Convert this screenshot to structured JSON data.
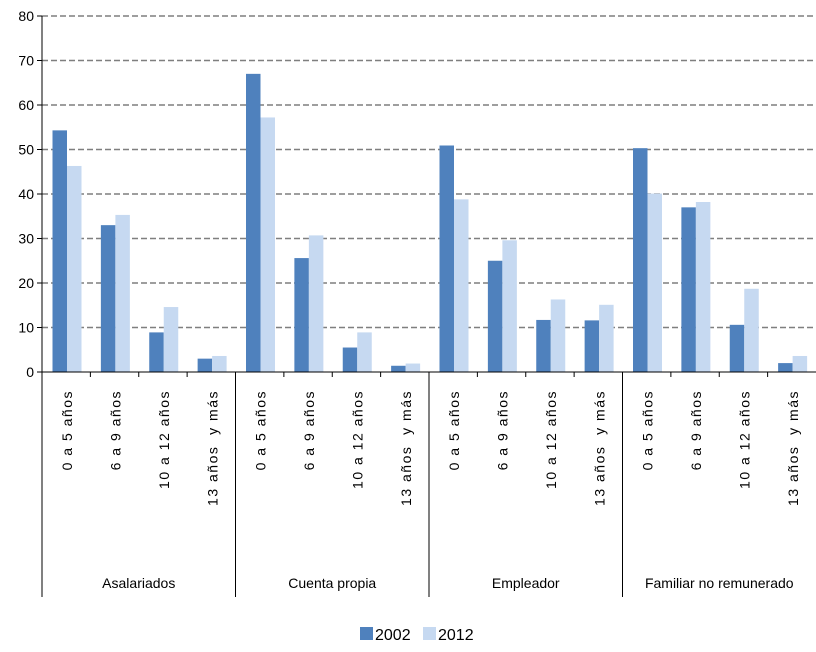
{
  "chart_data": {
    "type": "bar",
    "groups": [
      "Asalariados",
      "Cuenta propia",
      "Empleador",
      "Familiar no remunerado"
    ],
    "subcategories": [
      "0 a 5 años",
      "6 a 9 años",
      "10 a 12 años",
      "13 años  y más"
    ],
    "series": [
      {
        "name": "2002",
        "color": "#4f81bd",
        "values": [
          [
            54.3,
            33.0,
            8.9,
            3.0
          ],
          [
            67.0,
            25.6,
            5.5,
            1.4
          ],
          [
            50.9,
            25.0,
            11.7,
            11.6
          ],
          [
            50.3,
            37.0,
            10.6,
            2.0
          ]
        ]
      },
      {
        "name": "2012",
        "color": "#c6d9f1",
        "values": [
          [
            46.3,
            35.3,
            14.6,
            3.6
          ],
          [
            57.2,
            30.7,
            8.9,
            1.9
          ],
          [
            38.8,
            29.6,
            16.3,
            15.1
          ],
          [
            40.1,
            38.2,
            18.7,
            3.6
          ]
        ]
      }
    ],
    "ylim": [
      0,
      80
    ],
    "yticks": [
      "0",
      "10",
      "20",
      "30",
      "40",
      "50",
      "60",
      "70",
      "80"
    ],
    "grid": true,
    "legend": "bottom-center"
  }
}
